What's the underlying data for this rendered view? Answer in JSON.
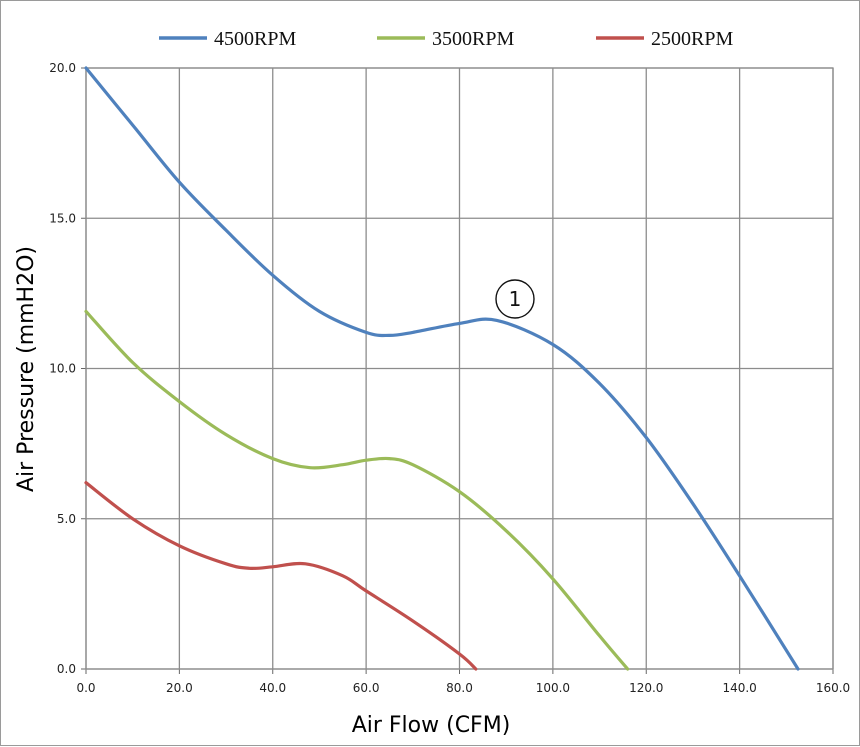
{
  "chart_data": {
    "type": "line",
    "title": "",
    "xlabel": "Air Flow (CFM)",
    "ylabel": "Air Pressure (mmH2O)",
    "xlim": [
      0,
      160
    ],
    "ylim": [
      0,
      20
    ],
    "xticks": [
      "0.0",
      "20.0",
      "40.0",
      "60.0",
      "80.0",
      "100.0",
      "120.0",
      "140.0",
      "160.0"
    ],
    "yticks": [
      "0.0",
      "5.0",
      "10.0",
      "15.0",
      "20.0"
    ],
    "grid": true,
    "legend_position": "top",
    "annotation": "1",
    "series": [
      {
        "name": "4500RPM",
        "color": "#4f81bd",
        "x": [
          0,
          10,
          20,
          30,
          40,
          50,
          60,
          65,
          70,
          80,
          88,
          100,
          110,
          120,
          130,
          140,
          152.5
        ],
        "y": [
          20.0,
          18.1,
          16.2,
          14.6,
          13.1,
          11.9,
          11.2,
          11.1,
          11.2,
          11.5,
          11.6,
          10.8,
          9.5,
          7.7,
          5.5,
          3.1,
          0.0
        ]
      },
      {
        "name": "3500RPM",
        "color": "#9bbb59",
        "x": [
          0,
          10,
          20,
          30,
          40,
          48,
          55,
          60,
          65,
          70,
          80,
          90,
          100,
          110,
          116
        ],
        "y": [
          11.9,
          10.2,
          8.9,
          7.8,
          7.0,
          6.7,
          6.8,
          6.95,
          7.0,
          6.8,
          5.9,
          4.6,
          3.0,
          1.1,
          0.0
        ]
      },
      {
        "name": "2500RPM",
        "color": "#c0504d",
        "x": [
          0,
          10,
          20,
          30,
          35,
          40,
          47,
          55,
          60,
          70,
          80,
          83.5
        ],
        "y": [
          6.2,
          5.0,
          4.1,
          3.5,
          3.35,
          3.4,
          3.5,
          3.1,
          2.6,
          1.6,
          0.5,
          0.0
        ]
      }
    ]
  }
}
